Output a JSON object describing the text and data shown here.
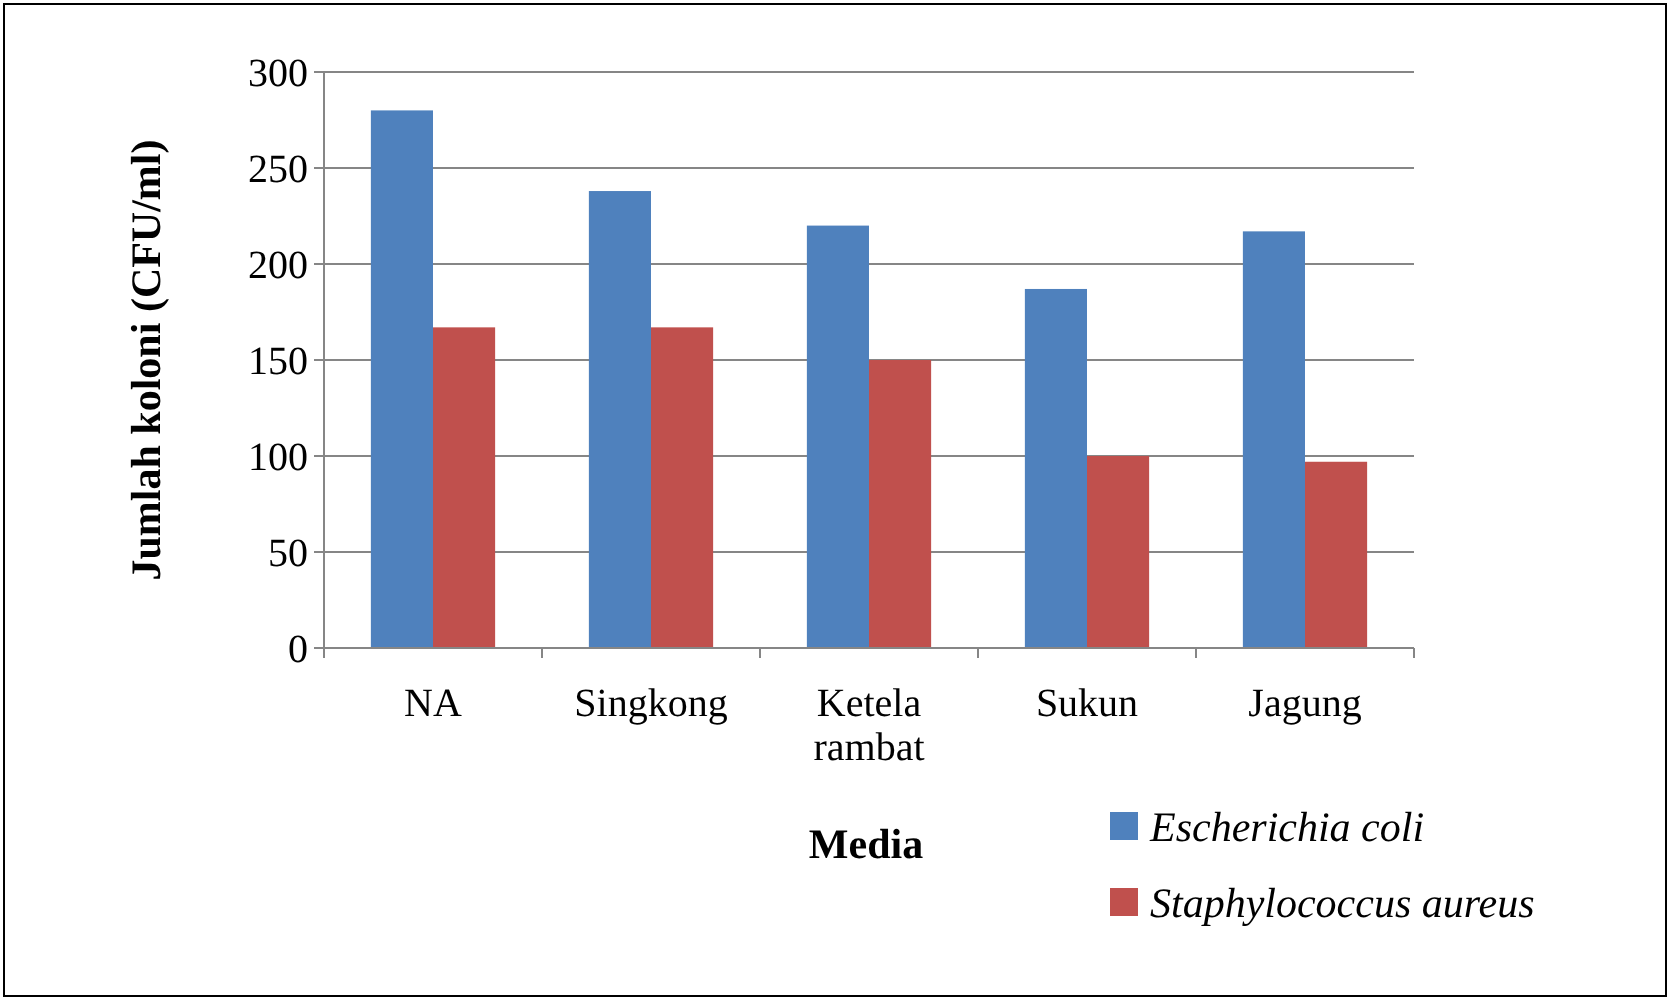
{
  "chart_data": {
    "type": "bar",
    "xlabel": "Media",
    "ylabel": "Jumlah koloni (CFU/ml)",
    "categories": [
      "NA",
      "Singkong",
      "Ketela rambat",
      "Sukun",
      "Jagung"
    ],
    "series": [
      {
        "name": "Escherichia coli",
        "color": "#4f81bd",
        "values": [
          280,
          238,
          220,
          187,
          217
        ]
      },
      {
        "name": "Staphylococcus aureus",
        "color": "#c0504d",
        "values": [
          167,
          167,
          150,
          100,
          97
        ]
      }
    ],
    "ylim": [
      0,
      300
    ],
    "yticks": [
      0,
      50,
      100,
      150,
      200,
      250,
      300
    ],
    "grid": "y",
    "legend": "bottom right"
  }
}
